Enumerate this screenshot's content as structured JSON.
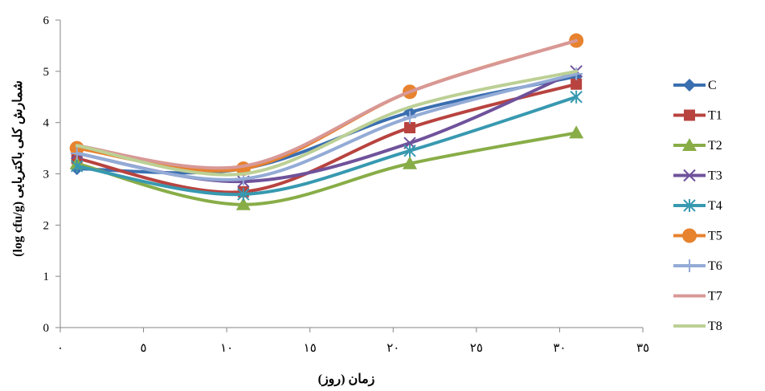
{
  "chart_data": {
    "type": "line",
    "title": "",
    "xlabel": "زمان (روز)",
    "ylabel": "شمارش کلی باکتریایی (log cfu/g)",
    "xlim": [
      0,
      35
    ],
    "ylim": [
      0,
      6
    ],
    "x_ticks": [
      0,
      5,
      10,
      15,
      20,
      25,
      30,
      35
    ],
    "x_tick_labels": [
      "٠",
      "٥",
      "١٠",
      "١٥",
      "٢٠",
      "٢٥",
      "٣٠",
      "٣٥"
    ],
    "y_ticks": [
      0,
      1,
      2,
      3,
      4,
      5,
      6
    ],
    "y_tick_labels": [
      "0",
      "1",
      "2",
      "3",
      "4",
      "5",
      "6"
    ],
    "grid": false,
    "legend_position": "right",
    "x": [
      1,
      11,
      21,
      31
    ],
    "series": [
      {
        "name": "C",
        "color": "#3a6fb0",
        "marker": "diamond",
        "values": [
          3.1,
          3.1,
          4.2,
          4.9
        ]
      },
      {
        "name": "T1",
        "color": "#b8433f",
        "marker": "square",
        "values": [
          3.3,
          2.65,
          3.9,
          4.75
        ]
      },
      {
        "name": "T2",
        "color": "#88ad47",
        "marker": "triangle",
        "values": [
          3.2,
          2.4,
          3.2,
          3.8
        ]
      },
      {
        "name": "T3",
        "color": "#6f529b",
        "marker": "x",
        "values": [
          3.4,
          2.85,
          3.6,
          5.0
        ]
      },
      {
        "name": "T4",
        "color": "#3799b0",
        "marker": "star",
        "values": [
          3.15,
          2.6,
          3.45,
          4.5
        ]
      },
      {
        "name": "T5",
        "color": "#e7822e",
        "marker": "circle",
        "values": [
          3.5,
          3.1,
          4.6,
          5.6
        ]
      },
      {
        "name": "T6",
        "color": "#93abd6",
        "marker": "plus",
        "values": [
          3.4,
          2.9,
          4.1,
          4.95
        ]
      },
      {
        "name": "T7",
        "color": "#d89896",
        "marker": "none",
        "values": [
          3.55,
          3.15,
          4.6,
          5.6
        ]
      },
      {
        "name": "T8",
        "color": "#bcd095",
        "marker": "none",
        "values": [
          3.55,
          3.0,
          4.3,
          5.0
        ]
      }
    ]
  }
}
